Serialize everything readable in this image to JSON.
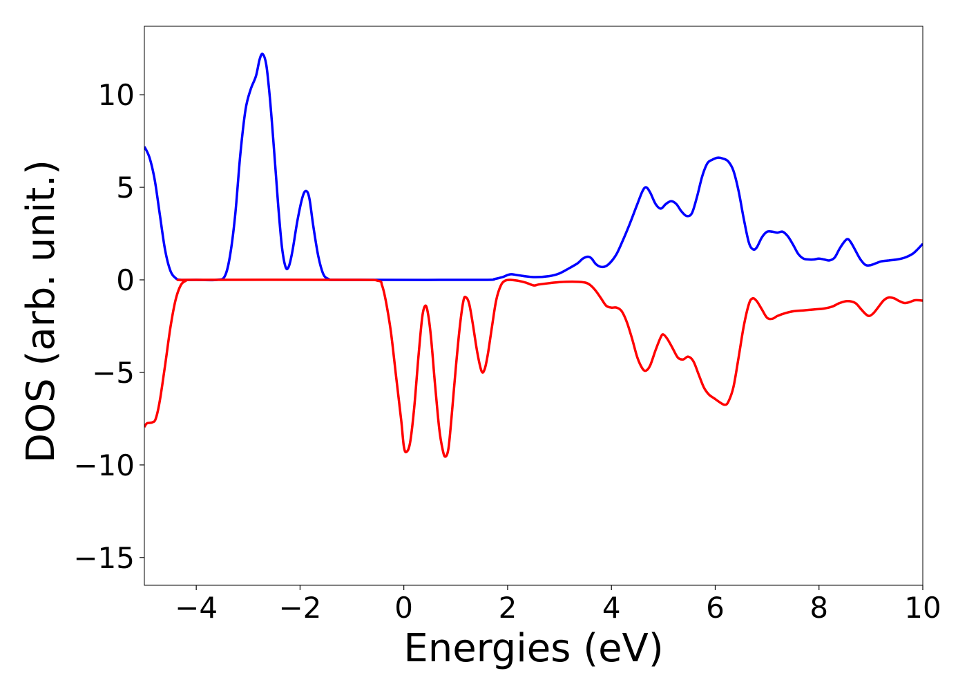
{
  "chart_data": {
    "type": "line",
    "title": "",
    "xlabel": "Energies (eV)",
    "ylabel": "DOS (arb. unit.)",
    "xlim": [
      -5,
      10
    ],
    "ylim": [
      -16.5,
      13.7
    ],
    "grid": false,
    "legend": "none",
    "xticks": [
      {
        "value": -4,
        "label": "−4"
      },
      {
        "value": -2,
        "label": "−2"
      },
      {
        "value": 0,
        "label": "0"
      },
      {
        "value": 2,
        "label": "2"
      },
      {
        "value": 4,
        "label": "4"
      },
      {
        "value": 6,
        "label": "6"
      },
      {
        "value": 8,
        "label": "8"
      },
      {
        "value": 10,
        "label": "10"
      }
    ],
    "yticks": [
      {
        "value": 10,
        "label": "10"
      },
      {
        "value": 5,
        "label": "5"
      },
      {
        "value": 0,
        "label": "0"
      },
      {
        "value": -5,
        "label": "−5"
      },
      {
        "value": -10,
        "label": "−10"
      },
      {
        "value": -15,
        "label": "−15"
      }
    ],
    "series": [
      {
        "color": "#0000ff",
        "points": [
          [
            -5.0,
            7.2
          ],
          [
            -4.9,
            6.6
          ],
          [
            -4.8,
            5.4
          ],
          [
            -4.7,
            3.5
          ],
          [
            -4.6,
            1.6
          ],
          [
            -4.5,
            0.5
          ],
          [
            -4.4,
            0.1
          ],
          [
            -4.3,
            0.0
          ],
          [
            -4.0,
            0.0
          ],
          [
            -3.6,
            0.0
          ],
          [
            -3.45,
            0.2
          ],
          [
            -3.35,
            1.3
          ],
          [
            -3.25,
            3.5
          ],
          [
            -3.15,
            6.8
          ],
          [
            -3.05,
            9.2
          ],
          [
            -2.95,
            10.3
          ],
          [
            -2.85,
            11.0
          ],
          [
            -2.78,
            11.9
          ],
          [
            -2.72,
            12.2
          ],
          [
            -2.65,
            11.6
          ],
          [
            -2.58,
            9.8
          ],
          [
            -2.5,
            7.0
          ],
          [
            -2.42,
            4.0
          ],
          [
            -2.35,
            1.8
          ],
          [
            -2.28,
            0.7
          ],
          [
            -2.22,
            0.7
          ],
          [
            -2.15,
            1.5
          ],
          [
            -2.05,
            3.2
          ],
          [
            -1.95,
            4.5
          ],
          [
            -1.88,
            4.8
          ],
          [
            -1.82,
            4.4
          ],
          [
            -1.75,
            3.0
          ],
          [
            -1.65,
            1.3
          ],
          [
            -1.55,
            0.3
          ],
          [
            -1.45,
            0.05
          ],
          [
            -1.35,
            0.0
          ],
          [
            -0.5,
            0.0
          ],
          [
            1.5,
            0.0
          ],
          [
            1.75,
            0.05
          ],
          [
            1.9,
            0.15
          ],
          [
            2.05,
            0.3
          ],
          [
            2.2,
            0.25
          ],
          [
            2.5,
            0.15
          ],
          [
            2.8,
            0.2
          ],
          [
            3.0,
            0.35
          ],
          [
            3.2,
            0.65
          ],
          [
            3.35,
            0.9
          ],
          [
            3.45,
            1.15
          ],
          [
            3.55,
            1.25
          ],
          [
            3.62,
            1.15
          ],
          [
            3.7,
            0.85
          ],
          [
            3.8,
            0.7
          ],
          [
            3.9,
            0.75
          ],
          [
            4.0,
            1.0
          ],
          [
            4.1,
            1.4
          ],
          [
            4.2,
            2.0
          ],
          [
            4.35,
            3.0
          ],
          [
            4.5,
            4.1
          ],
          [
            4.6,
            4.8
          ],
          [
            4.67,
            5.0
          ],
          [
            4.75,
            4.7
          ],
          [
            4.85,
            4.1
          ],
          [
            4.95,
            3.85
          ],
          [
            5.05,
            4.1
          ],
          [
            5.15,
            4.25
          ],
          [
            5.25,
            4.1
          ],
          [
            5.35,
            3.7
          ],
          [
            5.45,
            3.45
          ],
          [
            5.55,
            3.6
          ],
          [
            5.65,
            4.5
          ],
          [
            5.75,
            5.6
          ],
          [
            5.85,
            6.3
          ],
          [
            5.95,
            6.5
          ],
          [
            6.05,
            6.6
          ],
          [
            6.15,
            6.55
          ],
          [
            6.25,
            6.4
          ],
          [
            6.35,
            5.9
          ],
          [
            6.45,
            4.8
          ],
          [
            6.55,
            3.3
          ],
          [
            6.65,
            2.0
          ],
          [
            6.73,
            1.65
          ],
          [
            6.8,
            1.75
          ],
          [
            6.9,
            2.3
          ],
          [
            7.0,
            2.6
          ],
          [
            7.1,
            2.6
          ],
          [
            7.2,
            2.55
          ],
          [
            7.3,
            2.6
          ],
          [
            7.4,
            2.35
          ],
          [
            7.5,
            1.9
          ],
          [
            7.6,
            1.4
          ],
          [
            7.7,
            1.15
          ],
          [
            7.8,
            1.1
          ],
          [
            7.9,
            1.1
          ],
          [
            8.0,
            1.15
          ],
          [
            8.1,
            1.1
          ],
          [
            8.2,
            1.05
          ],
          [
            8.3,
            1.2
          ],
          [
            8.4,
            1.7
          ],
          [
            8.5,
            2.1
          ],
          [
            8.56,
            2.2
          ],
          [
            8.62,
            2.0
          ],
          [
            8.7,
            1.6
          ],
          [
            8.8,
            1.1
          ],
          [
            8.9,
            0.8
          ],
          [
            9.0,
            0.8
          ],
          [
            9.1,
            0.9
          ],
          [
            9.2,
            1.0
          ],
          [
            9.35,
            1.05
          ],
          [
            9.5,
            1.1
          ],
          [
            9.65,
            1.2
          ],
          [
            9.8,
            1.4
          ],
          [
            9.9,
            1.65
          ],
          [
            10.0,
            1.95
          ]
        ]
      },
      {
        "color": "#ff0000",
        "points": [
          [
            -5.0,
            -7.95
          ],
          [
            -4.95,
            -7.75
          ],
          [
            -4.85,
            -7.7
          ],
          [
            -4.78,
            -7.5
          ],
          [
            -4.7,
            -6.5
          ],
          [
            -4.6,
            -4.6
          ],
          [
            -4.5,
            -2.6
          ],
          [
            -4.4,
            -1.1
          ],
          [
            -4.3,
            -0.3
          ],
          [
            -4.2,
            -0.05
          ],
          [
            -4.1,
            0.0
          ],
          [
            -1.0,
            0.0
          ],
          [
            -0.5,
            -0.05
          ],
          [
            -0.42,
            -0.3
          ],
          [
            -0.35,
            -1.1
          ],
          [
            -0.25,
            -2.8
          ],
          [
            -0.15,
            -5.2
          ],
          [
            -0.05,
            -7.6
          ],
          [
            0.0,
            -9.0
          ],
          [
            0.05,
            -9.3
          ],
          [
            0.12,
            -8.8
          ],
          [
            0.2,
            -6.9
          ],
          [
            0.28,
            -4.2
          ],
          [
            0.35,
            -2.1
          ],
          [
            0.4,
            -1.45
          ],
          [
            0.45,
            -1.6
          ],
          [
            0.52,
            -3.0
          ],
          [
            0.6,
            -5.6
          ],
          [
            0.68,
            -8.0
          ],
          [
            0.75,
            -9.2
          ],
          [
            0.8,
            -9.55
          ],
          [
            0.86,
            -9.1
          ],
          [
            0.92,
            -7.4
          ],
          [
            1.0,
            -4.8
          ],
          [
            1.08,
            -2.5
          ],
          [
            1.15,
            -1.1
          ],
          [
            1.2,
            -0.95
          ],
          [
            1.26,
            -1.3
          ],
          [
            1.33,
            -2.4
          ],
          [
            1.42,
            -4.0
          ],
          [
            1.5,
            -4.95
          ],
          [
            1.56,
            -4.8
          ],
          [
            1.62,
            -4.0
          ],
          [
            1.7,
            -2.5
          ],
          [
            1.78,
            -1.1
          ],
          [
            1.87,
            -0.3
          ],
          [
            1.95,
            -0.05
          ],
          [
            2.05,
            0.0
          ],
          [
            2.2,
            -0.05
          ],
          [
            2.35,
            -0.15
          ],
          [
            2.5,
            -0.3
          ],
          [
            2.6,
            -0.25
          ],
          [
            2.8,
            -0.18
          ],
          [
            3.0,
            -0.12
          ],
          [
            3.3,
            -0.1
          ],
          [
            3.5,
            -0.15
          ],
          [
            3.6,
            -0.3
          ],
          [
            3.7,
            -0.6
          ],
          [
            3.8,
            -1.0
          ],
          [
            3.9,
            -1.4
          ],
          [
            4.0,
            -1.5
          ],
          [
            4.1,
            -1.5
          ],
          [
            4.2,
            -1.7
          ],
          [
            4.3,
            -2.3
          ],
          [
            4.4,
            -3.2
          ],
          [
            4.5,
            -4.2
          ],
          [
            4.6,
            -4.8
          ],
          [
            4.67,
            -4.9
          ],
          [
            4.75,
            -4.6
          ],
          [
            4.85,
            -3.8
          ],
          [
            4.95,
            -3.1
          ],
          [
            5.0,
            -2.95
          ],
          [
            5.08,
            -3.2
          ],
          [
            5.18,
            -3.7
          ],
          [
            5.28,
            -4.2
          ],
          [
            5.38,
            -4.3
          ],
          [
            5.48,
            -4.15
          ],
          [
            5.58,
            -4.4
          ],
          [
            5.68,
            -5.1
          ],
          [
            5.78,
            -5.8
          ],
          [
            5.88,
            -6.2
          ],
          [
            5.98,
            -6.4
          ],
          [
            6.08,
            -6.6
          ],
          [
            6.18,
            -6.75
          ],
          [
            6.25,
            -6.6
          ],
          [
            6.35,
            -5.8
          ],
          [
            6.45,
            -4.2
          ],
          [
            6.55,
            -2.5
          ],
          [
            6.65,
            -1.3
          ],
          [
            6.72,
            -1.0
          ],
          [
            6.8,
            -1.15
          ],
          [
            6.9,
            -1.6
          ],
          [
            7.0,
            -2.05
          ],
          [
            7.1,
            -2.1
          ],
          [
            7.2,
            -1.95
          ],
          [
            7.35,
            -1.8
          ],
          [
            7.5,
            -1.7
          ],
          [
            7.7,
            -1.65
          ],
          [
            7.9,
            -1.6
          ],
          [
            8.1,
            -1.55
          ],
          [
            8.25,
            -1.45
          ],
          [
            8.4,
            -1.25
          ],
          [
            8.55,
            -1.15
          ],
          [
            8.7,
            -1.25
          ],
          [
            8.8,
            -1.55
          ],
          [
            8.9,
            -1.85
          ],
          [
            8.97,
            -1.95
          ],
          [
            9.05,
            -1.8
          ],
          [
            9.15,
            -1.45
          ],
          [
            9.25,
            -1.1
          ],
          [
            9.35,
            -0.95
          ],
          [
            9.45,
            -1.0
          ],
          [
            9.55,
            -1.15
          ],
          [
            9.65,
            -1.25
          ],
          [
            9.75,
            -1.2
          ],
          [
            9.85,
            -1.1
          ],
          [
            10.0,
            -1.12
          ]
        ]
      }
    ]
  }
}
